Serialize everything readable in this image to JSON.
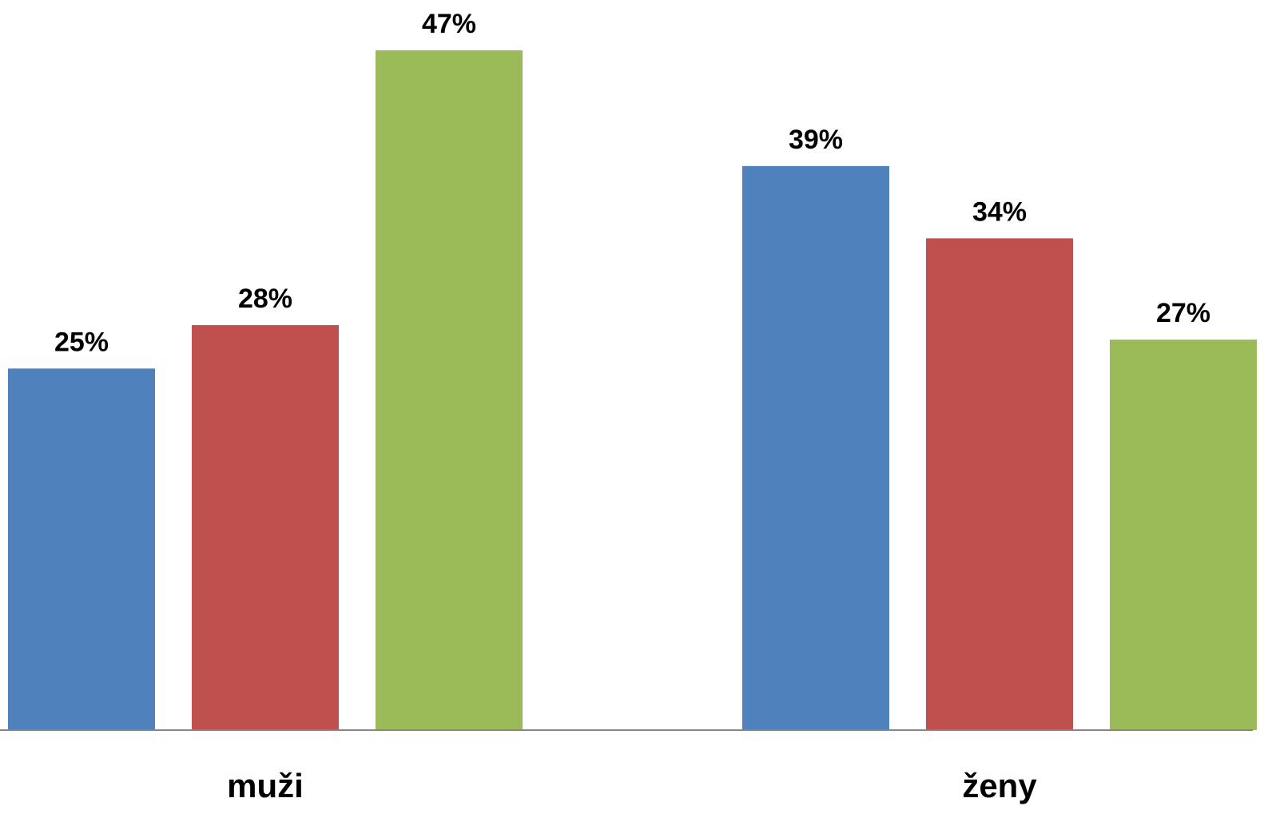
{
  "chart_data": {
    "type": "bar",
    "categories": [
      "muži",
      "ženy"
    ],
    "series": [
      {
        "color": "#4f81bd",
        "values": [
          25,
          39
        ],
        "value_labels": [
          "25%",
          "39%"
        ]
      },
      {
        "color": "#c0504d",
        "values": [
          28,
          34
        ],
        "value_labels": [
          "28%",
          "34%"
        ]
      },
      {
        "color": "#9bbb59",
        "values": [
          47,
          27
        ],
        "value_labels": [
          "47%",
          "27%"
        ]
      }
    ]
  }
}
